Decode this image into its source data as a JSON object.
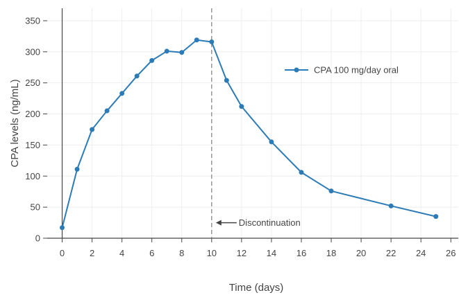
{
  "chart_data": {
    "type": "line",
    "xlabel": "Time (days)",
    "ylabel": "CPA levels (ng/mL)",
    "xlim": [
      -1,
      26.5
    ],
    "ylim": [
      0,
      370
    ],
    "xticks": [
      0,
      2,
      4,
      6,
      8,
      10,
      12,
      14,
      16,
      18,
      20,
      22,
      24,
      26
    ],
    "yticks": [
      0,
      50,
      100,
      150,
      200,
      250,
      300,
      350
    ],
    "grid": true,
    "legend_position": "top-right",
    "colors": {
      "series": "#2c7bb6",
      "axis": "#444444",
      "grid": "#eeeeee"
    },
    "series": [
      {
        "name": "CPA 100 mg/day oral",
        "x": [
          0,
          1,
          2,
          3,
          4,
          5,
          6,
          7,
          8,
          9,
          10,
          11,
          12,
          14,
          16,
          18,
          22,
          25
        ],
        "y": [
          17,
          111,
          175,
          205,
          233,
          261,
          286,
          301,
          299,
          319,
          316,
          254,
          212,
          155,
          106,
          76,
          52,
          35
        ]
      }
    ],
    "vline": {
      "x": 10,
      "style": "dashed"
    },
    "annotation": {
      "text": "Discontinuation",
      "x": 10,
      "y": 25,
      "arrow": "left"
    }
  }
}
